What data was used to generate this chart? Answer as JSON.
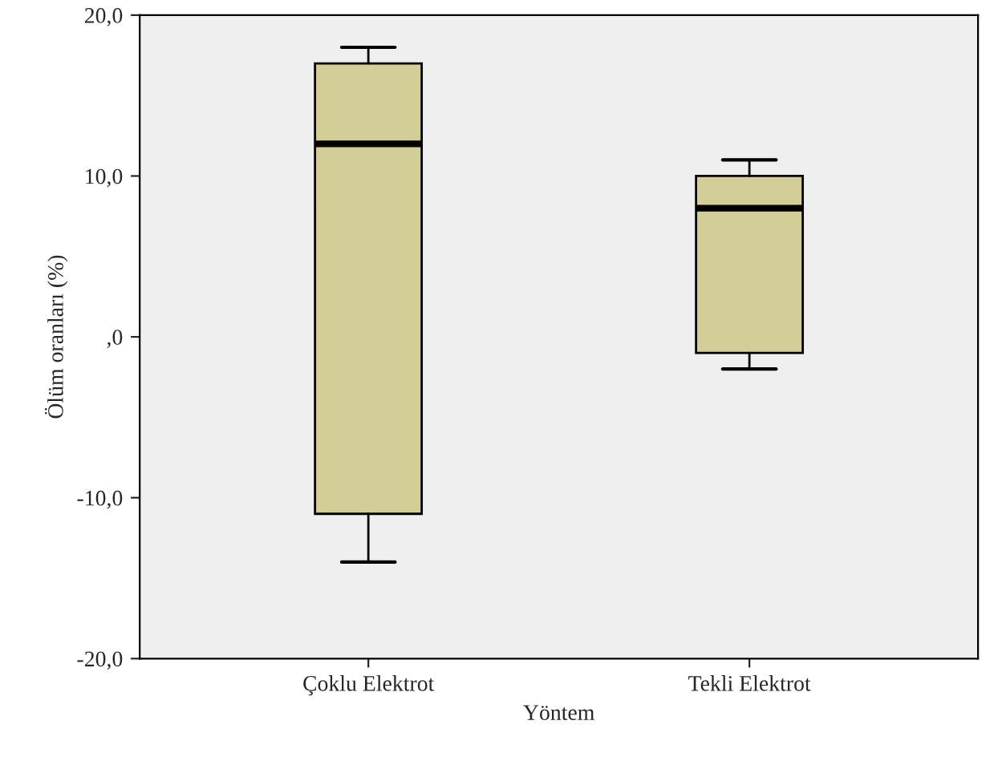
{
  "chart_data": {
    "type": "box",
    "xlabel": "Yöntem",
    "ylabel": "Ölüm oranları (%)",
    "categories": [
      "Çoklu Elektrot",
      "Tekli Elektrot"
    ],
    "boxes": [
      {
        "low": -14,
        "q1": -11,
        "median": 12,
        "q3": 17,
        "high": 18
      },
      {
        "low": -2,
        "q1": -1,
        "median": 8,
        "q3": 10,
        "high": 11
      }
    ],
    "color": "#d3cd98",
    "ylim": [
      -20,
      20
    ],
    "yticks": [
      {
        "value": -20,
        "label": "-20,0"
      },
      {
        "value": -10,
        "label": "-10,0"
      },
      {
        "value": 0,
        "label": ",0"
      },
      {
        "value": 10,
        "label": "10,0"
      },
      {
        "value": 20,
        "label": "20,0"
      }
    ],
    "grid": false
  }
}
